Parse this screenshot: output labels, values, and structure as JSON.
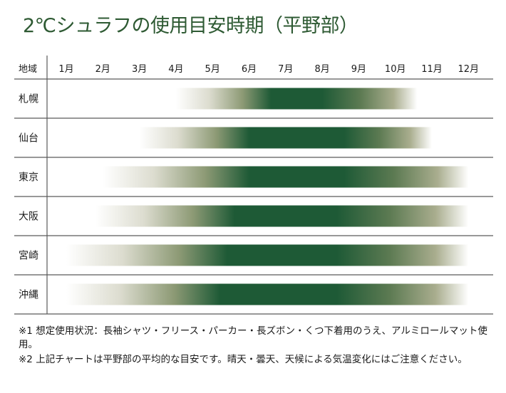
{
  "title": "2℃シュラフの使用目安時期（平野部）",
  "chart_data": {
    "type": "heatmap",
    "title": "2℃シュラフの使用目安時期（平野部）",
    "header_label": "地域",
    "months": [
      "1月",
      "2月",
      "3月",
      "4月",
      "5月",
      "6月",
      "7月",
      "8月",
      "9月",
      "10月",
      "11月",
      "12月"
    ],
    "peak_color": "#1e5a36",
    "regions": [
      {
        "name": "札幌",
        "start": 4.0,
        "end": 10.6,
        "peak_start": 6.6,
        "peak_end": 8.0
      },
      {
        "name": "仙台",
        "start": 3.0,
        "end": 11.0,
        "peak_start": 6.0,
        "peak_end": 8.6
      },
      {
        "name": "東京",
        "start": 2.0,
        "end": 12.0,
        "peak_start": 6.0,
        "peak_end": 8.6
      },
      {
        "name": "大阪",
        "start": 1.8,
        "end": 12.0,
        "peak_start": 5.6,
        "peak_end": 8.4
      },
      {
        "name": "宮崎",
        "start": 1.0,
        "end": 12.0,
        "peak_start": 5.4,
        "peak_end": 8.4
      },
      {
        "name": "沖縄",
        "start": 1.0,
        "end": 12.0,
        "peak_start": 5.2,
        "peak_end": 8.4
      }
    ]
  },
  "notes": [
    "※1 想定使用状況：長袖シャツ・フリース・パーカー・長ズボン・くつ下着用のうえ、アルミロールマット使用。",
    "※2 上記チャートは平野部の平均的な目安です。晴天・曇天、天候による気温変化にはご注意ください。"
  ]
}
